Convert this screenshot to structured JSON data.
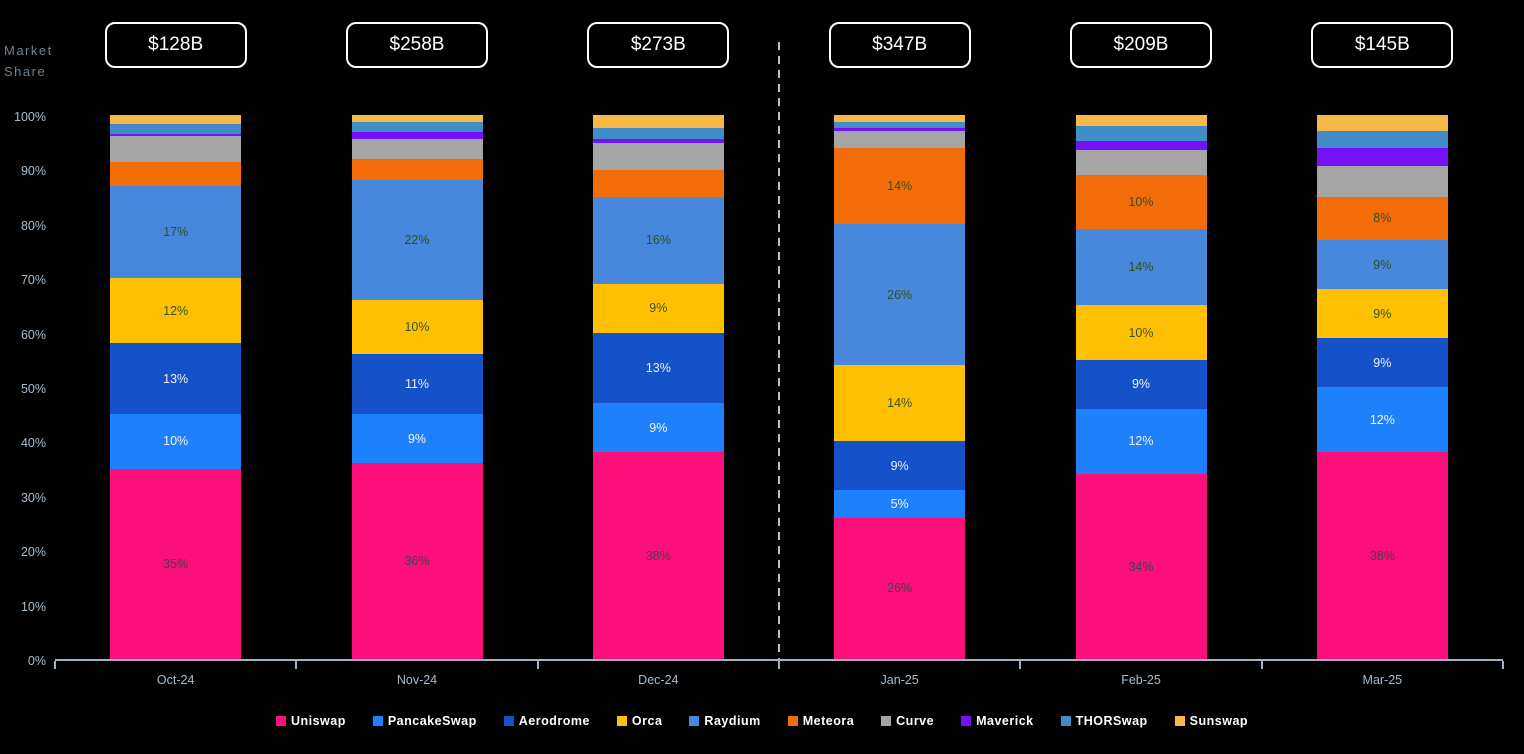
{
  "axis": {
    "ylabel_line1": "Market",
    "ylabel_line2": "Share",
    "yticks": [
      "100%",
      "90%",
      "80%",
      "70%",
      "60%",
      "50%",
      "40%",
      "30%",
      "20%",
      "10%",
      "0%"
    ]
  },
  "chart_data": {
    "type": "bar",
    "stacked": true,
    "orientation": "vertical",
    "title": "",
    "ylabel": "Market Share",
    "ylim": [
      0,
      100
    ],
    "grid": false,
    "legend_position": "bottom",
    "categories": [
      "Oct-24",
      "Nov-24",
      "Dec-24",
      "Jan-25",
      "Feb-25",
      "Mar-25"
    ],
    "totals": [
      "$128B",
      "$258B",
      "$273B",
      "$347B",
      "$209B",
      "$145B"
    ],
    "separator_after_category": "Dec-24",
    "series": [
      {
        "name": "Uniswap",
        "color": "#FA0F7B",
        "label_color": "#44414B",
        "values": [
          35,
          36,
          38,
          26,
          34,
          38
        ],
        "labels": [
          "35%",
          "36%",
          "38%",
          "26%",
          "34%",
          "38%"
        ]
      },
      {
        "name": "PancakeSwap",
        "color": "#1F80FB",
        "label_color": "#F2F2F2",
        "values": [
          10,
          9,
          9,
          5,
          12,
          12
        ],
        "labels": [
          "10%",
          "9%",
          "9%",
          "5%",
          "12%",
          "12%"
        ]
      },
      {
        "name": "Aerodrome",
        "color": "#1551C8",
        "label_color": "#EFEFF5",
        "values": [
          13,
          11,
          13,
          9,
          9,
          9
        ],
        "labels": [
          "13%",
          "11%",
          "13%",
          "9%",
          "9%",
          "9%"
        ]
      },
      {
        "name": "Orca",
        "color": "#FFC003",
        "label_color": "#3C5320",
        "values": [
          12,
          10,
          9,
          14,
          10,
          9
        ],
        "labels": [
          "12%",
          "10%",
          "9%",
          "14%",
          "10%",
          "9%"
        ]
      },
      {
        "name": "Raydium",
        "color": "#4787DC",
        "label_color": "#31511F",
        "values": [
          17,
          22,
          16,
          26,
          14,
          9
        ],
        "labels": [
          "17%",
          "22%",
          "16%",
          "26%",
          "14%",
          "9%"
        ]
      },
      {
        "name": "Meteora",
        "color": "#F26D0A",
        "label_color": "#3F4D1C",
        "values": [
          4.4,
          4,
          4.9,
          14,
          10,
          8
        ],
        "labels": [
          "",
          "",
          "",
          "14%",
          "10%",
          "8%"
        ]
      },
      {
        "name": "Curve",
        "color": "#A5A5A5",
        "label_color": "#3F3F3F",
        "values": [
          4.8,
          3.5,
          4.9,
          3.0,
          4.6,
          5.6
        ],
        "labels": [
          "",
          "",
          "",
          "",
          "",
          ""
        ]
      },
      {
        "name": "Maverick",
        "color": "#7511F6",
        "label_color": "#FFFFFF",
        "values": [
          0.3,
          1.3,
          0.8,
          0.7,
          1.7,
          3.4
        ],
        "labels": [
          "",
          "",
          "",
          "",
          "",
          ""
        ]
      },
      {
        "name": "THORSwap",
        "color": "#3F8CC6",
        "label_color": "#FFFFFF",
        "values": [
          1.9,
          1.9,
          2.1,
          1.0,
          2.6,
          3.0
        ],
        "labels": [
          "",
          "",
          "",
          "",
          "",
          ""
        ]
      },
      {
        "name": "Sunswap",
        "color": "#F7B84A",
        "label_color": "#3F3F3F",
        "values": [
          1.6,
          1.3,
          2.3,
          1.3,
          2.1,
          3.0
        ],
        "labels": [
          "",
          "",
          "",
          "",
          "",
          ""
        ]
      }
    ]
  }
}
